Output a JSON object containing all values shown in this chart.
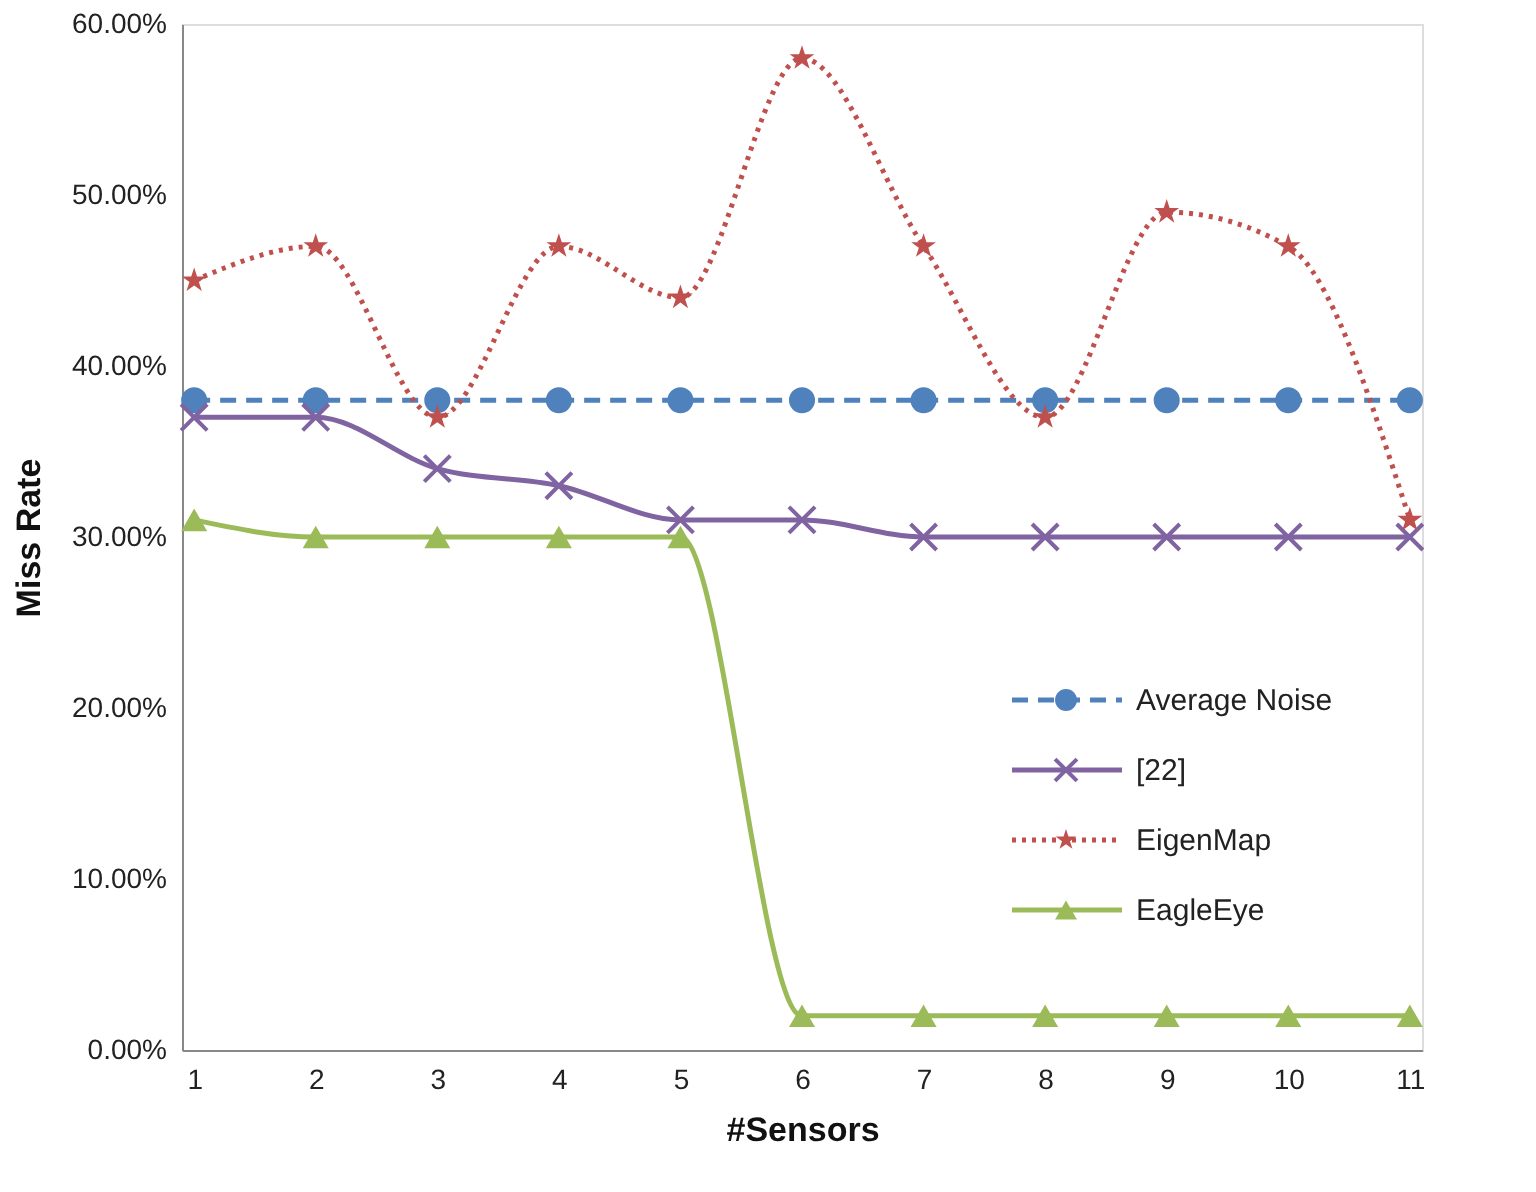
{
  "chart_data": {
    "type": "line",
    "xlabel": "#Sensors",
    "ylabel": "Miss Rate",
    "categories": [
      "1",
      "2",
      "3",
      "4",
      "5",
      "6",
      "7",
      "8",
      "9",
      "10",
      "11"
    ],
    "ylim": [
      0,
      60
    ],
    "yticks": [
      {
        "value": 0,
        "label": "0.00%"
      },
      {
        "value": 10,
        "label": "10.00%"
      },
      {
        "value": 20,
        "label": "20.00%"
      },
      {
        "value": 30,
        "label": "30.00%"
      },
      {
        "value": 40,
        "label": "40.00%"
      },
      {
        "value": 50,
        "label": "50.00%"
      },
      {
        "value": 60,
        "label": "60.00%"
      }
    ],
    "grid": false,
    "legend": "right",
    "series": [
      {
        "name": "Average Noise",
        "color": "#4f81bd",
        "marker": "circle",
        "line_style": "dashed",
        "values": [
          38,
          38,
          38,
          38,
          38,
          38,
          38,
          38,
          38,
          38,
          38
        ]
      },
      {
        "name": "[22]",
        "color": "#8064a2",
        "marker": "cross",
        "line_style": "solid",
        "values": [
          37,
          37,
          34,
          33,
          31,
          31,
          30,
          30,
          30,
          30,
          30
        ]
      },
      {
        "name": "EigenMap",
        "color": "#c0504d",
        "marker": "star",
        "line_style": "dotted",
        "values": [
          45,
          47,
          37,
          47,
          44,
          58,
          47,
          37,
          49,
          47,
          31
        ]
      },
      {
        "name": "EagleEye",
        "color": "#9bbb59",
        "marker": "triangle",
        "line_style": "solid",
        "values": [
          31,
          30,
          30,
          30,
          30,
          2,
          2,
          2,
          2,
          2,
          2
        ]
      }
    ]
  }
}
